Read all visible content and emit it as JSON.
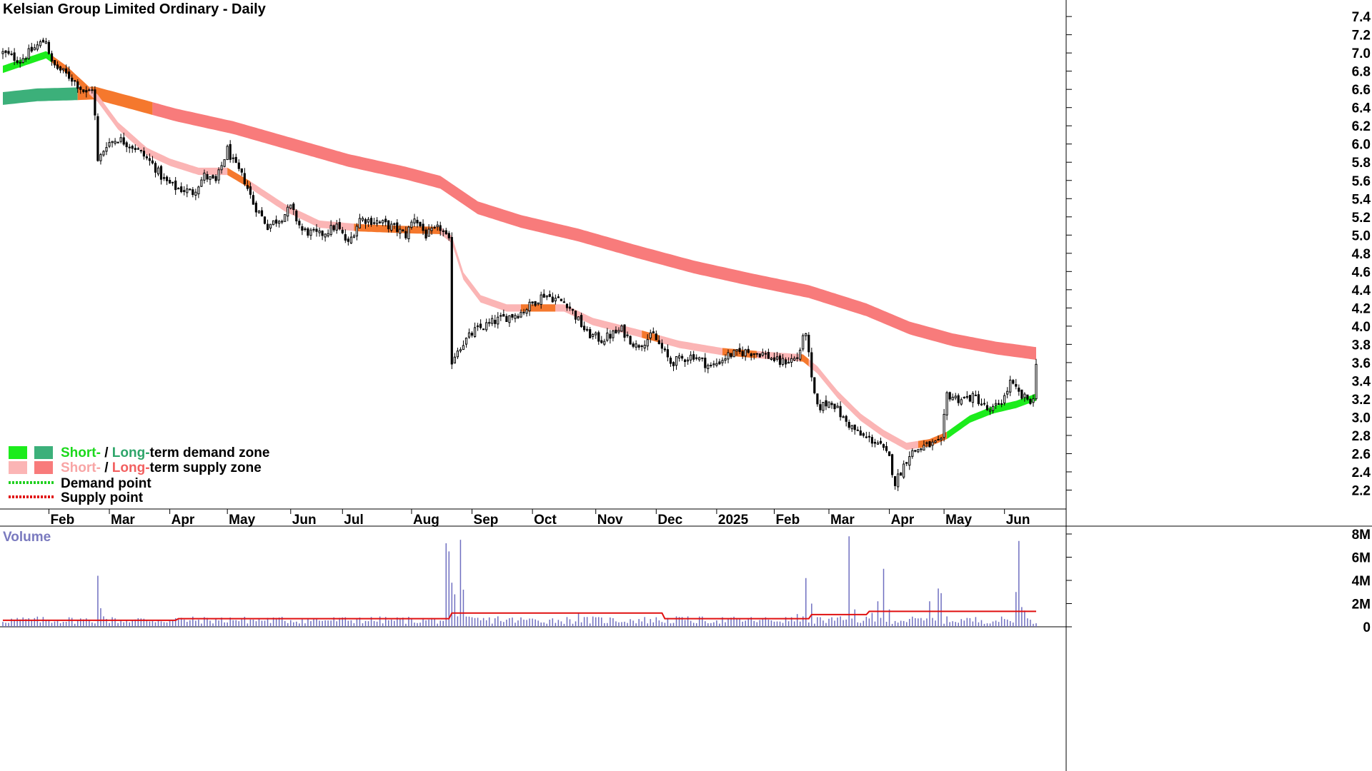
{
  "chart_data": {
    "type": "candlestick",
    "title": "Kelsian Group Limited Ordinary - Daily",
    "price_axis": {
      "ylim": [
        2.0,
        7.55
      ],
      "ticks": [
        "7.4",
        "7.2",
        "7.0",
        "6.8",
        "6.6",
        "6.4",
        "6.2",
        "6.0",
        "5.8",
        "5.6",
        "5.4",
        "5.2",
        "5.0",
        "4.8",
        "4.6",
        "4.4",
        "4.2",
        "4.0",
        "3.8",
        "3.6",
        "3.4",
        "3.2",
        "3.0",
        "2.8",
        "2.6",
        "2.4",
        "2.2"
      ]
    },
    "months": [
      {
        "label": "Feb",
        "day": 16
      },
      {
        "label": "Mar",
        "day": 37
      },
      {
        "label": "Apr",
        "day": 58
      },
      {
        "label": "May",
        "day": 78
      },
      {
        "label": "Jun",
        "day": 100
      },
      {
        "label": "Jul",
        "day": 118
      },
      {
        "label": "Aug",
        "day": 142
      },
      {
        "label": "Sep",
        "day": 163
      },
      {
        "label": "Oct",
        "day": 184
      },
      {
        "label": "Nov",
        "day": 206
      },
      {
        "label": "Dec",
        "day": 227
      },
      {
        "label": "2025",
        "day": 248
      },
      {
        "label": "Feb",
        "day": 268
      },
      {
        "label": "Mar",
        "day": 287
      },
      {
        "label": "Apr",
        "day": 308
      },
      {
        "label": "May",
        "day": 327
      },
      {
        "label": "Jun",
        "day": 348
      }
    ],
    "num_days": 360,
    "price_anchors": [
      [
        0,
        7.0
      ],
      [
        6,
        6.92
      ],
      [
        12,
        7.08
      ],
      [
        15,
        7.15
      ],
      [
        17,
        6.88
      ],
      [
        24,
        6.72
      ],
      [
        29,
        6.55
      ],
      [
        31,
        6.62
      ],
      [
        32,
        6.3
      ],
      [
        33,
        5.8
      ],
      [
        36,
        6.0
      ],
      [
        40,
        6.06
      ],
      [
        46,
        5.96
      ],
      [
        52,
        5.78
      ],
      [
        56,
        5.6
      ],
      [
        60,
        5.52
      ],
      [
        66,
        5.47
      ],
      [
        70,
        5.65
      ],
      [
        74,
        5.58
      ],
      [
        78,
        5.94
      ],
      [
        80,
        5.8
      ],
      [
        84,
        5.6
      ],
      [
        87,
        5.35
      ],
      [
        92,
        5.1
      ],
      [
        97,
        5.2
      ],
      [
        100,
        5.3
      ],
      [
        104,
        5.05
      ],
      [
        110,
        5.0
      ],
      [
        116,
        5.1
      ],
      [
        120,
        4.9
      ],
      [
        124,
        5.18
      ],
      [
        130,
        5.15
      ],
      [
        136,
        5.08
      ],
      [
        140,
        5.0
      ],
      [
        143,
        5.2
      ],
      [
        147,
        5.0
      ],
      [
        152,
        5.08
      ],
      [
        155,
        4.92
      ],
      [
        156,
        3.62
      ],
      [
        158,
        3.75
      ],
      [
        164,
        3.95
      ],
      [
        172,
        4.07
      ],
      [
        180,
        4.15
      ],
      [
        188,
        4.35
      ],
      [
        196,
        4.25
      ],
      [
        203,
        3.92
      ],
      [
        208,
        3.85
      ],
      [
        215,
        3.96
      ],
      [
        220,
        3.78
      ],
      [
        226,
        3.9
      ],
      [
        232,
        3.6
      ],
      [
        240,
        3.68
      ],
      [
        246,
        3.55
      ],
      [
        252,
        3.68
      ],
      [
        258,
        3.72
      ],
      [
        264,
        3.7
      ],
      [
        270,
        3.6
      ],
      [
        276,
        3.65
      ],
      [
        279,
        3.95
      ],
      [
        281,
        3.4
      ],
      [
        283,
        3.1
      ],
      [
        288,
        3.18
      ],
      [
        292,
        2.98
      ],
      [
        298,
        2.8
      ],
      [
        304,
        2.72
      ],
      [
        308,
        2.55
      ],
      [
        310,
        2.28
      ],
      [
        315,
        2.6
      ],
      [
        320,
        2.68
      ],
      [
        326,
        2.72
      ],
      [
        328,
        3.25
      ],
      [
        332,
        3.2
      ],
      [
        338,
        3.22
      ],
      [
        343,
        3.05
      ],
      [
        348,
        3.22
      ],
      [
        350,
        3.38
      ],
      [
        354,
        3.22
      ],
      [
        358,
        3.18
      ],
      [
        359,
        3.62
      ]
    ],
    "short_ema_anchors": [
      [
        0,
        6.82
      ],
      [
        15,
        6.98
      ],
      [
        22,
        6.82
      ],
      [
        33,
        6.5
      ],
      [
        40,
        6.2
      ],
      [
        50,
        5.92
      ],
      [
        58,
        5.8
      ],
      [
        68,
        5.7
      ],
      [
        78,
        5.7
      ],
      [
        86,
        5.55
      ],
      [
        98,
        5.3
      ],
      [
        110,
        5.12
      ],
      [
        124,
        5.08
      ],
      [
        140,
        5.06
      ],
      [
        152,
        5.05
      ],
      [
        156,
        4.95
      ],
      [
        160,
        4.55
      ],
      [
        166,
        4.3
      ],
      [
        175,
        4.2
      ],
      [
        185,
        4.2
      ],
      [
        195,
        4.2
      ],
      [
        205,
        4.05
      ],
      [
        220,
        3.93
      ],
      [
        235,
        3.8
      ],
      [
        250,
        3.72
      ],
      [
        265,
        3.68
      ],
      [
        278,
        3.65
      ],
      [
        283,
        3.52
      ],
      [
        290,
        3.25
      ],
      [
        298,
        3.0
      ],
      [
        306,
        2.82
      ],
      [
        314,
        2.68
      ],
      [
        322,
        2.72
      ],
      [
        328,
        2.8
      ],
      [
        336,
        2.98
      ],
      [
        344,
        3.08
      ],
      [
        352,
        3.14
      ],
      [
        359,
        3.22
      ]
    ],
    "long_ema_anchors": [
      [
        0,
        6.5
      ],
      [
        12,
        6.54
      ],
      [
        24,
        6.55
      ],
      [
        32,
        6.56
      ],
      [
        45,
        6.45
      ],
      [
        60,
        6.32
      ],
      [
        80,
        6.18
      ],
      [
        100,
        6.0
      ],
      [
        120,
        5.82
      ],
      [
        140,
        5.68
      ],
      [
        152,
        5.58
      ],
      [
        165,
        5.3
      ],
      [
        180,
        5.15
      ],
      [
        200,
        5.0
      ],
      [
        220,
        4.82
      ],
      [
        240,
        4.65
      ],
      [
        260,
        4.51
      ],
      [
        280,
        4.38
      ],
      [
        300,
        4.18
      ],
      [
        315,
        3.98
      ],
      [
        330,
        3.85
      ],
      [
        345,
        3.76
      ],
      [
        359,
        3.7
      ]
    ],
    "short_zone_width": 0.08,
    "long_zone_width": 0.14,
    "short_zone_segments": [
      {
        "from": 0,
        "to": 17,
        "type": "demand"
      },
      {
        "from": 17,
        "to": 30,
        "type": "transition"
      },
      {
        "from": 30,
        "to": 78,
        "type": "supply"
      },
      {
        "from": 78,
        "to": 86,
        "type": "transition"
      },
      {
        "from": 86,
        "to": 122,
        "type": "supply"
      },
      {
        "from": 122,
        "to": 152,
        "type": "transition"
      },
      {
        "from": 152,
        "to": 180,
        "type": "supply"
      },
      {
        "from": 180,
        "to": 192,
        "type": "transition"
      },
      {
        "from": 192,
        "to": 222,
        "type": "supply"
      },
      {
        "from": 222,
        "to": 228,
        "type": "transition"
      },
      {
        "from": 228,
        "to": 250,
        "type": "supply"
      },
      {
        "from": 250,
        "to": 262,
        "type": "transition"
      },
      {
        "from": 262,
        "to": 277,
        "type": "supply"
      },
      {
        "from": 277,
        "to": 280,
        "type": "transition"
      },
      {
        "from": 280,
        "to": 318,
        "type": "supply"
      },
      {
        "from": 318,
        "to": 328,
        "type": "transition"
      },
      {
        "from": 328,
        "to": 360,
        "type": "demand"
      }
    ],
    "long_zone_segments": [
      {
        "from": 0,
        "to": 26,
        "type": "demand"
      },
      {
        "from": 26,
        "to": 52,
        "type": "transition"
      },
      {
        "from": 52,
        "to": 360,
        "type": "supply"
      }
    ],
    "volume": {
      "title": "Volume",
      "ticks": [
        "8M",
        "6M",
        "4M",
        "2M",
        "0"
      ],
      "ylim": [
        0,
        8
      ],
      "ma": 0.7,
      "spikes": [
        [
          33,
          4.4
        ],
        [
          34,
          1.6
        ],
        [
          35,
          0.9
        ],
        [
          79,
          0.8
        ],
        [
          96,
          0.8
        ],
        [
          124,
          0.8
        ],
        [
          154,
          7.2
        ],
        [
          155,
          6.5
        ],
        [
          156,
          3.8
        ],
        [
          157,
          2.8
        ],
        [
          159,
          7.5
        ],
        [
          160,
          3.2
        ],
        [
          172,
          0.9
        ],
        [
          200,
          1.2
        ],
        [
          234,
          0.9
        ],
        [
          276,
          1.1
        ],
        [
          279,
          4.2
        ],
        [
          281,
          2.0
        ],
        [
          294,
          7.8
        ],
        [
          296,
          1.5
        ],
        [
          302,
          1.2
        ],
        [
          304,
          2.2
        ],
        [
          306,
          5.0
        ],
        [
          308,
          1.5
        ],
        [
          322,
          2.2
        ],
        [
          325,
          3.3
        ],
        [
          326,
          2.9
        ],
        [
          352,
          3.0
        ],
        [
          353,
          7.4
        ],
        [
          354,
          1.7
        ],
        [
          355,
          1.4
        ]
      ]
    },
    "legend": {
      "demand_zone_label_short": "Short-",
      "demand_zone_label_sep": " / ",
      "demand_zone_label_long": "Long-",
      "demand_zone_label_rest": "term demand zone",
      "supply_zone_label_short": "Short-",
      "supply_zone_label_sep": " / ",
      "supply_zone_label_long": "Long-",
      "supply_zone_label_rest": "term supply zone",
      "demand_point": "Demand point",
      "supply_point": "Supply point"
    },
    "colors": {
      "short_demand": "#1cec1c",
      "long_demand": "#3cb07a",
      "short_supply": "#fbb5b5",
      "long_supply": "#f87b7b",
      "transition": "#f5782d",
      "demand_point": "#20d020",
      "supply_point": "#e01010",
      "short_demand_text": "#1cd81c",
      "long_demand_text": "#2ea56a",
      "short_supply_text": "#f8a5a5",
      "long_supply_text": "#f26060",
      "volume_bar": "#6f6fc0",
      "volume_ma": "#e01010",
      "volume_title": "#7a7abf",
      "candle_up": "#ffffff",
      "candle_down": "#000000"
    }
  }
}
